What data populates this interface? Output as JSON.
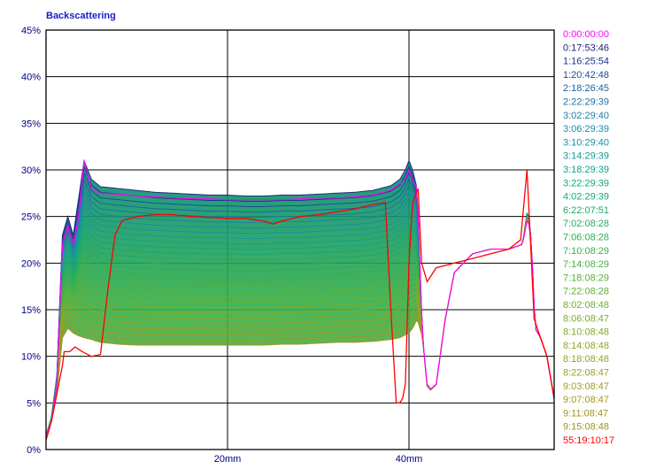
{
  "chart_data": {
    "type": "line",
    "title": "Backscattering",
    "xlabel": "",
    "ylabel": "",
    "x_unit": "mm",
    "xlim": [
      0,
      56
    ],
    "ylim": [
      0,
      45
    ],
    "y_ticks": [
      "0%",
      "5%",
      "10%",
      "15%",
      "20%",
      "25%",
      "30%",
      "35%",
      "40%",
      "45%"
    ],
    "x_ticks": [
      {
        "value": 20,
        "label": "20mm"
      },
      {
        "value": 40,
        "label": "40mm"
      }
    ],
    "grid": true,
    "legend_position": "right",
    "series_colors": {
      "first": "#ff00ff",
      "early": "#1a237e",
      "middle": "#00897b",
      "late": "#9e9d24",
      "last": "#ff0000"
    },
    "series": [
      {
        "name": "0:00:00:00",
        "color": "#ff00ff"
      },
      {
        "name": "0:17:53:46",
        "color": "#1a237e"
      },
      {
        "name": "1:16:25:54",
        "color": "#1c2f8c"
      },
      {
        "name": "1:20:42:48",
        "color": "#1d4a98"
      },
      {
        "name": "2:18:26:45",
        "color": "#1e5fa0"
      },
      {
        "name": "2:22:29:39",
        "color": "#1f72a5"
      },
      {
        "name": "3:02:29:40",
        "color": "#1d7fa6"
      },
      {
        "name": "3:06:29:39",
        "color": "#1a8aa4"
      },
      {
        "name": "3:10:29:40",
        "color": "#16929f"
      },
      {
        "name": "3:14:29:39",
        "color": "#139a96"
      },
      {
        "name": "3:18:29:39",
        "color": "#10a08c"
      },
      {
        "name": "3:22:29:39",
        "color": "#12a57f"
      },
      {
        "name": "4:02:29:39",
        "color": "#16a872"
      },
      {
        "name": "6:22:07:51",
        "color": "#1cab66"
      },
      {
        "name": "7:02:08:28",
        "color": "#24ad5a"
      },
      {
        "name": "7:06:08:28",
        "color": "#2daf50"
      },
      {
        "name": "7:10:08:29",
        "color": "#38b046"
      },
      {
        "name": "7:14:08:29",
        "color": "#44b13e"
      },
      {
        "name": "7:18:08:29",
        "color": "#52b137"
      },
      {
        "name": "7:22:08:28",
        "color": "#5fb031"
      },
      {
        "name": "8:02:08:48",
        "color": "#6caf2c"
      },
      {
        "name": "8:06:08:47",
        "color": "#78ad28"
      },
      {
        "name": "8:10:08:48",
        "color": "#84aa25"
      },
      {
        "name": "8:14:08:48",
        "color": "#8ea723"
      },
      {
        "name": "8:18:08:48",
        "color": "#96a322"
      },
      {
        "name": "8:22:08:47",
        "color": "#9ca021"
      },
      {
        "name": "9:03:08:47",
        "color": "#a09c20"
      },
      {
        "name": "9:07:08:47",
        "color": "#a29820"
      },
      {
        "name": "9:11:08:47",
        "color": "#a39420"
      },
      {
        "name": "9:15:08:48",
        "color": "#a49020"
      },
      {
        "name": "55:19:10:17",
        "color": "#ff0000"
      }
    ],
    "profiles": {
      "first": {
        "x": [
          0,
          0.6,
          1.2,
          1.8,
          2.4,
          3.0,
          3.6,
          4.2,
          5.0,
          6.0,
          8,
          10,
          12,
          14,
          16,
          18,
          20,
          22,
          24,
          26,
          28,
          30,
          32,
          34,
          36,
          38,
          39.0,
          39.6,
          40.0,
          40.4,
          40.9,
          41.5,
          42.0,
          42.4,
          43.0,
          44.0,
          45,
          47,
          49,
          51,
          52.5,
          53.1,
          53.5,
          53.9,
          54.5,
          55.2,
          56
        ],
        "y": [
          1.5,
          3,
          7,
          22,
          24,
          22,
          25,
          31,
          28,
          27.5,
          27.4,
          27.2,
          27.1,
          27.0,
          26.9,
          26.9,
          26.8,
          26.8,
          26.8,
          26.8,
          26.9,
          27.0,
          27.0,
          27.1,
          27.3,
          27.8,
          28.5,
          29,
          30,
          29,
          28,
          12,
          7,
          6.5,
          7,
          14,
          19,
          21,
          21.5,
          21.5,
          22,
          25,
          22,
          13,
          12,
          10,
          5.5
        ]
      },
      "early": {
        "x": [
          0,
          0.6,
          1.2,
          1.8,
          2.4,
          3.0,
          3.6,
          4.2,
          5.0,
          6.0,
          8,
          10,
          12,
          14,
          16,
          18,
          20,
          22,
          24,
          26,
          28,
          30,
          32,
          34,
          36,
          38,
          39.0,
          39.6,
          40.0,
          40.4,
          40.9,
          41.5,
          42.0,
          42.4,
          43.0,
          44.0,
          45,
          47,
          49,
          51,
          52.5,
          53.1,
          53.5,
          53.9,
          54.5,
          55.2,
          56
        ],
        "y": [
          1.5,
          3.5,
          8,
          23,
          25,
          23,
          27,
          31,
          29,
          28.2,
          28.0,
          27.8,
          27.6,
          27.5,
          27.4,
          27.3,
          27.3,
          27.2,
          27.2,
          27.3,
          27.3,
          27.4,
          27.5,
          27.6,
          27.8,
          28.3,
          29,
          30,
          31,
          30,
          28,
          12,
          6.8,
          6.4,
          7,
          14,
          19,
          21,
          21.5,
          21.5,
          22,
          26,
          22,
          13,
          12,
          10,
          5.5
        ]
      },
      "late": {
        "x": [
          0,
          0.6,
          1.2,
          1.8,
          2.4,
          3.0,
          3.6,
          4.2,
          5.0,
          6.0,
          8,
          10,
          12,
          14,
          16,
          18,
          20,
          22,
          24,
          26,
          28,
          30,
          32,
          34,
          36,
          38,
          39.0,
          39.6,
          40.0,
          40.4,
          40.9,
          41.5,
          42.0,
          42.4,
          43.0,
          44.0,
          45,
          47,
          49,
          51,
          52.5,
          53.1,
          53.5,
          53.9,
          54.5,
          55.2,
          56
        ],
        "y": [
          1.5,
          3,
          6,
          12,
          13,
          12.5,
          12.2,
          12,
          11.8,
          11.5,
          11.3,
          11.2,
          11.2,
          11.2,
          11.2,
          11.2,
          11.2,
          11.2,
          11.2,
          11.3,
          11.3,
          11.4,
          11.5,
          11.5,
          11.6,
          11.8,
          12,
          12.3,
          12.5,
          13,
          14,
          12,
          6.8,
          6.4,
          7,
          14,
          19,
          21,
          21.5,
          21.5,
          22,
          25,
          22,
          13,
          12,
          10,
          5.5
        ]
      },
      "last": {
        "x": [
          0,
          0.6,
          1.2,
          1.8,
          2.0,
          2.6,
          3.2,
          4.0,
          5.0,
          6.0,
          6.8,
          7.6,
          8.4,
          9.0,
          10,
          12,
          14,
          16,
          18,
          20,
          22,
          24,
          25,
          26,
          28,
          30,
          32,
          34,
          36,
          37.4,
          38.0,
          38.6,
          39.0,
          39.3,
          39.6,
          40.0,
          40.4,
          40.8,
          41.0,
          41.4,
          42.0,
          43,
          45,
          47,
          49,
          51,
          52.3,
          53.0,
          53.4,
          53.8,
          54.5,
          55.2,
          56
        ],
        "y": [
          1,
          3,
          6,
          9,
          10.5,
          10.5,
          11,
          10.5,
          10,
          10.2,
          17,
          23,
          24.6,
          24.7,
          25,
          25.2,
          25.2,
          25.0,
          24.9,
          24.8,
          24.8,
          24.5,
          24.2,
          24.5,
          25.0,
          25.2,
          25.5,
          25.8,
          26.3,
          26.5,
          15,
          5,
          5,
          5.5,
          7,
          20,
          26.5,
          27.5,
          28,
          20,
          18,
          19.5,
          20,
          20.5,
          21,
          21.5,
          22.5,
          30,
          22,
          14,
          12,
          10,
          5.5
        ]
      }
    }
  }
}
